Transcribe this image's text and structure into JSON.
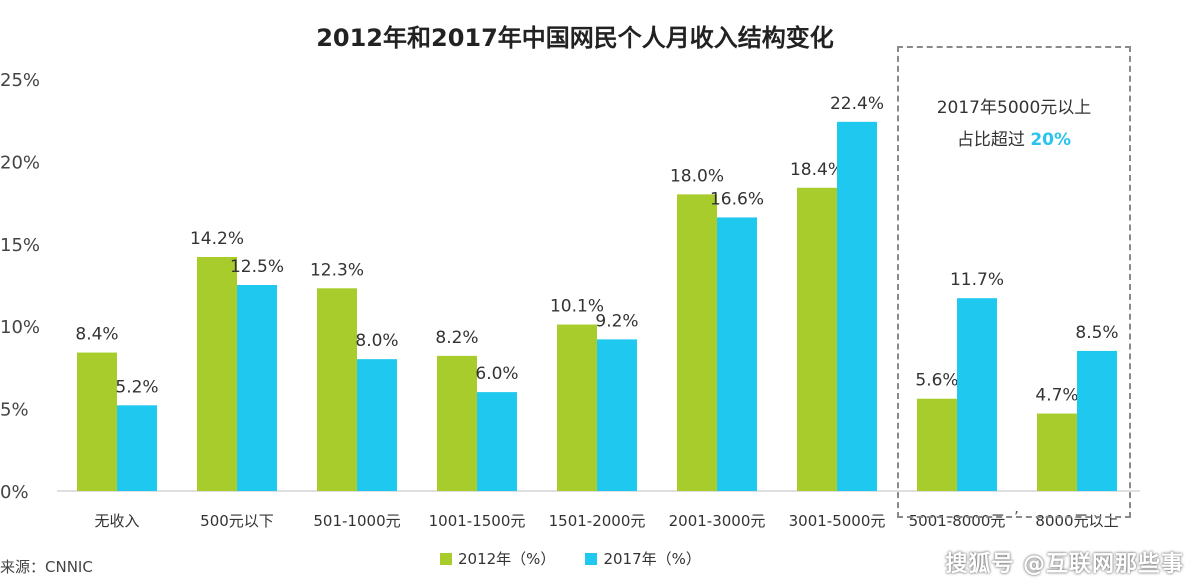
{
  "chart_data": {
    "type": "bar",
    "title": "2012年和2017年中国网民个人月收入结构变化",
    "categories": [
      "无收入",
      "500元以下",
      "501-1000元",
      "1001-1500元",
      "1501-2000元",
      "2001-3000元",
      "3001-5000元",
      "5001-8000元",
      "8000元以上"
    ],
    "series": [
      {
        "name": "2012年（%）",
        "color": "#a8cc2b",
        "values": [
          8.4,
          14.2,
          12.3,
          8.2,
          10.1,
          18.0,
          18.4,
          5.6,
          4.7
        ],
        "labels": [
          "8.4%",
          "14.2%",
          "12.3%",
          "8.2%",
          "10.1%",
          "18.0%",
          "18.4%",
          "5.6%",
          "4.7%"
        ]
      },
      {
        "name": "2017年（%）",
        "color": "#1ec8ef",
        "values": [
          5.2,
          12.5,
          8.0,
          6.0,
          9.2,
          16.6,
          22.4,
          11.7,
          8.5
        ],
        "labels": [
          "5.2%",
          "12.5%",
          "8.0%",
          "6.0%",
          "9.2%",
          "16.6%",
          "22.4%",
          "11.7%",
          "8.5%"
        ]
      }
    ],
    "yticks": [
      "0%",
      "5%",
      "10%",
      "15%",
      "20%",
      "25%"
    ],
    "ylim": [
      0,
      25
    ],
    "grid": false,
    "legend_position": "bottom-center"
  },
  "callout": {
    "line1": "2017年5000元以上",
    "line2_prefix": "占比超过",
    "line2_highlight": "20%"
  },
  "source": "来源：CNNIC",
  "watermark": "搜狐号 @互联网那些事",
  "stray_mark": "’"
}
